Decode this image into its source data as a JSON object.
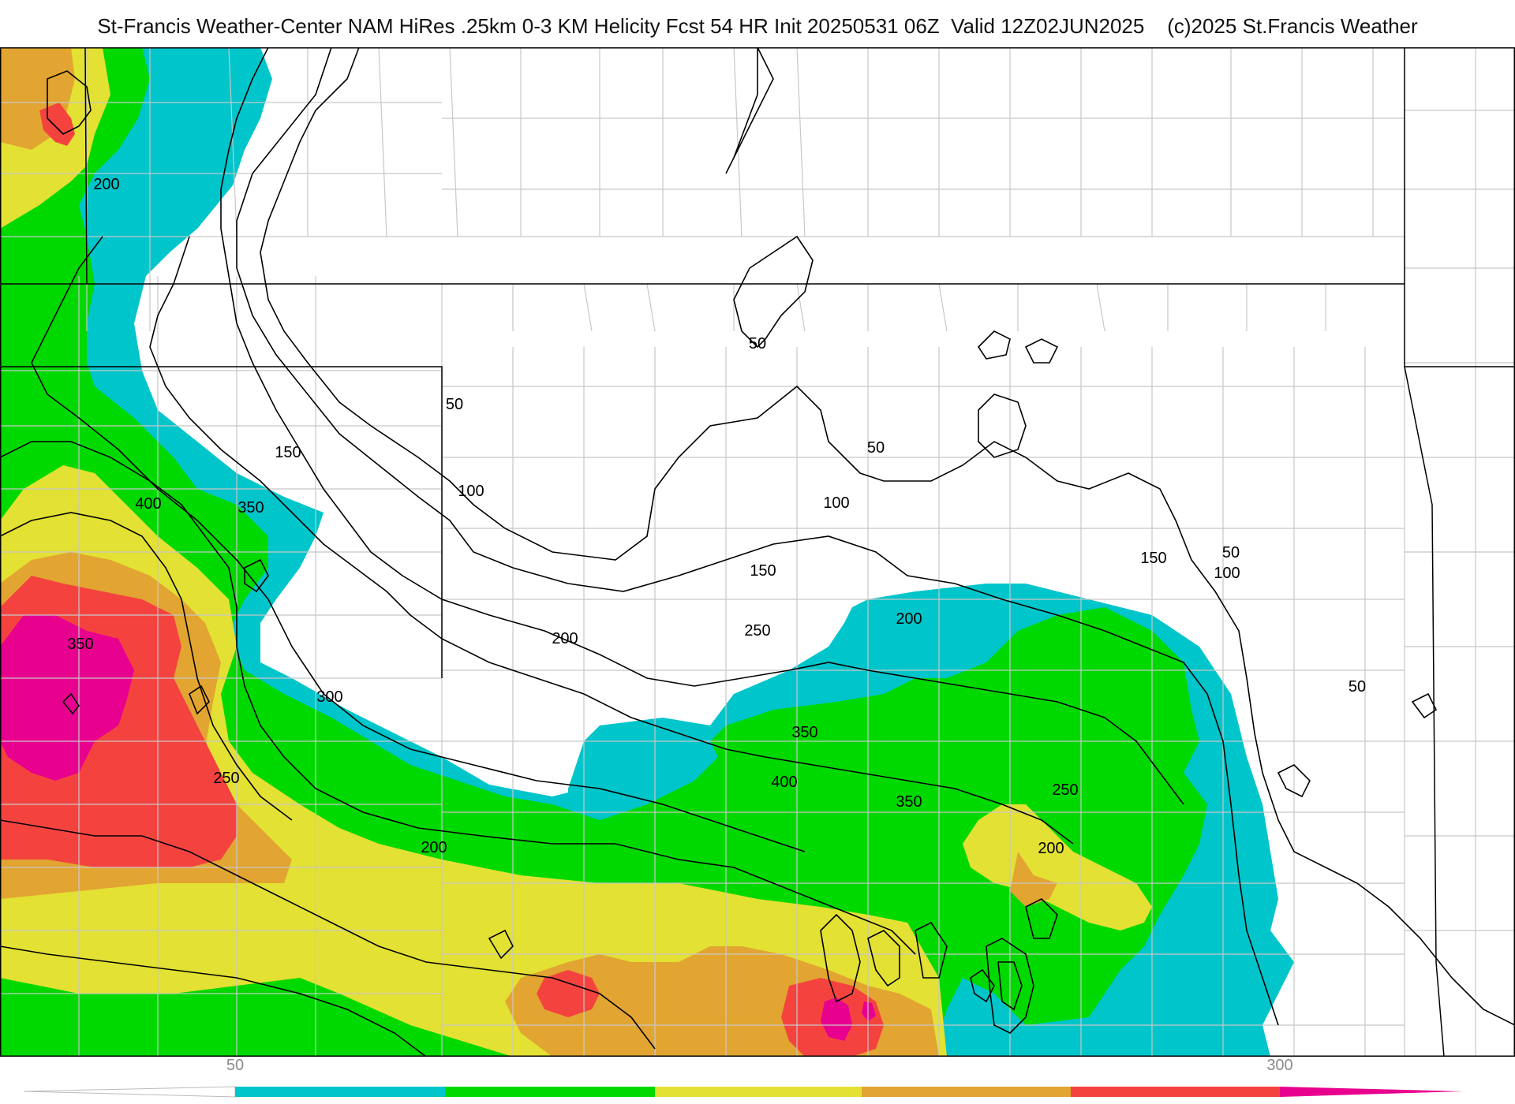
{
  "header": {
    "title": "St-Francis Weather-Center NAM HiRes .25km 0-3 KM Helicity Fcst 54 HR Init 20250531 06Z  Valid 12Z02JUN2025    (c)2025 St.Francis Weather"
  },
  "colors": {
    "cyan": "#00c5cb",
    "green": "#00d900",
    "yellow": "#e3e133",
    "orange": "#e2a531",
    "red": "#f4433f",
    "magenta": "#e8008f",
    "contour": "#000000",
    "county_line": "#c8c8c8",
    "state_line": "#000000"
  },
  "contour_labels": [
    {
      "text": "200",
      "level": 200
    },
    {
      "text": "150",
      "level": 150
    },
    {
      "text": "400",
      "level": 400
    },
    {
      "text": "350",
      "level": 350
    },
    {
      "text": "350",
      "level": 350
    },
    {
      "text": "300",
      "level": 300
    },
    {
      "text": "250",
      "level": 250
    },
    {
      "text": "200",
      "level": 200
    },
    {
      "text": "50",
      "level": 50
    },
    {
      "text": "100",
      "level": 100
    },
    {
      "text": "50",
      "level": 50
    },
    {
      "text": "50",
      "level": 50
    },
    {
      "text": "100",
      "level": 100
    },
    {
      "text": "150",
      "level": 150
    },
    {
      "text": "200",
      "level": 200
    },
    {
      "text": "250",
      "level": 250
    },
    {
      "text": "200",
      "level": 200
    },
    {
      "text": "350",
      "level": 350
    },
    {
      "text": "400",
      "level": 400
    },
    {
      "text": "350",
      "level": 350
    },
    {
      "text": "250",
      "level": 250
    },
    {
      "text": "200",
      "level": 200
    },
    {
      "text": "150",
      "level": 150
    },
    {
      "text": "100",
      "level": 100
    },
    {
      "text": "50",
      "level": 50
    },
    {
      "text": "50",
      "level": 50
    }
  ],
  "colorbar": {
    "labels": [
      "50",
      "300"
    ],
    "bins": [
      {
        "color": "#00c5cb"
      },
      {
        "color": "#00d900"
      },
      {
        "color": "#e3e133"
      },
      {
        "color": "#e2a531"
      },
      {
        "color": "#f4433f"
      },
      {
        "color": "#e8008f"
      }
    ]
  }
}
